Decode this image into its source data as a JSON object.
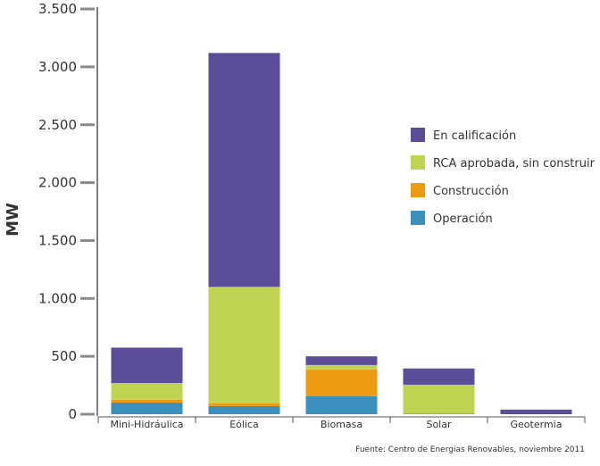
{
  "chart_data": {
    "type": "bar",
    "stacked": true,
    "title": "",
    "xlabel": "",
    "ylabel": "MW",
    "ylim": [
      0,
      3500
    ],
    "yticks": [
      0,
      500,
      1000,
      1500,
      2000,
      2500,
      3000,
      3500
    ],
    "ytick_labels": [
      "0",
      "500",
      "1.000",
      "1.500",
      "2.000",
      "2.500",
      "3.000",
      "3.500"
    ],
    "categories": [
      "Mini-Hidráulica",
      "Eólica",
      "Biomasa",
      "Solar",
      "Geotermia"
    ],
    "series": [
      {
        "name": "Operación",
        "color": "#3a8fbd",
        "values": [
          100,
          70,
          155,
          5,
          0
        ]
      },
      {
        "name": "Construcción",
        "color": "#ec9a12",
        "values": [
          25,
          25,
          230,
          0,
          0
        ]
      },
      {
        "name": "RCA aprobada, sin construir",
        "color": "#c0d352",
        "values": [
          145,
          1005,
          40,
          250,
          0
        ]
      },
      {
        "name": "En calificación",
        "color": "#5b4d97",
        "values": [
          305,
          2020,
          75,
          140,
          40
        ]
      }
    ],
    "legend_order": [
      "En calificación",
      "RCA aprobada, sin construir",
      "Construcción",
      "Operación"
    ],
    "legend_position": "right",
    "source_note": "Fuente: Centro de Energias Renovables, noviembre 2011"
  }
}
